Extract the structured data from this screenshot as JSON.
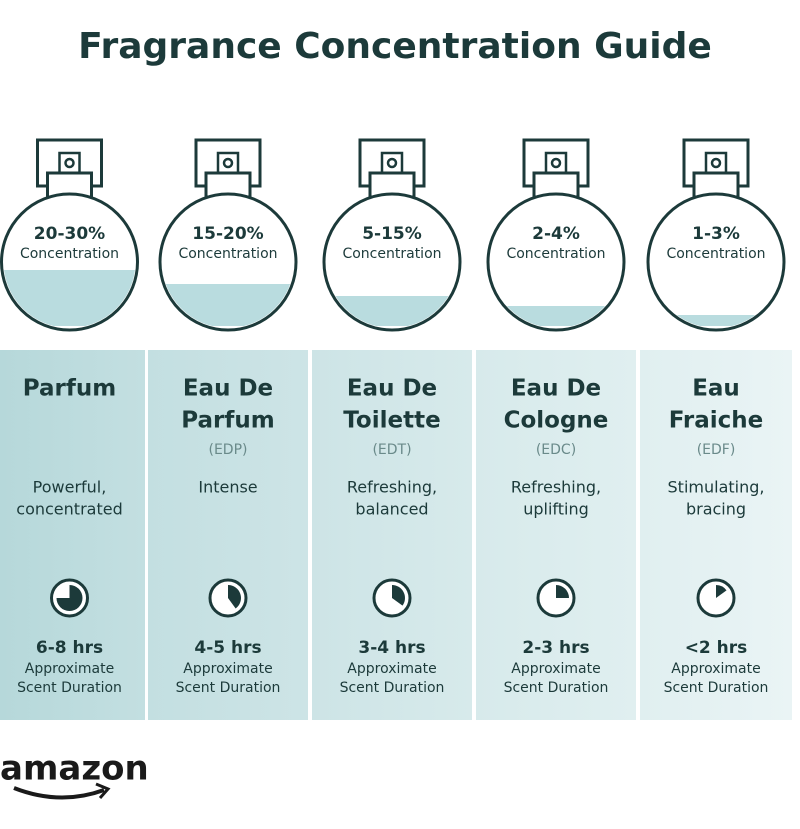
{
  "title": "Fragrance Concentration Guide",
  "columns": [
    {
      "concentration": "20-30%",
      "concentration_label": "Concentration",
      "name": [
        "Parfum"
      ],
      "description": [
        "Powerful,",
        "concentrated"
      ],
      "duration": "6-8 hrs",
      "duration_label": [
        "Approximate",
        "Scent Duration"
      ]
    },
    {
      "concentration": "15-20%",
      "concentration_label": "Concentration",
      "name": [
        "Eau De",
        "Parfum"
      ],
      "abbreviation": "(EDP)",
      "description": [
        "Intense"
      ],
      "duration": "4-5 hrs",
      "duration_label": [
        "Approximate",
        "Scent Duration"
      ]
    },
    {
      "concentration": "5-15%",
      "concentration_label": "Concentration",
      "name": [
        "Eau De",
        "Toilette"
      ],
      "abbreviation": "(EDT)",
      "description": [
        "Refreshing,",
        "balanced"
      ],
      "duration": "3-4 hrs",
      "duration_label": [
        "Approximate",
        "Scent Duration"
      ]
    },
    {
      "concentration": "2-4%",
      "concentration_label": "Concentration",
      "name": [
        "Eau De",
        "Cologne"
      ],
      "abbreviation": "(EDC)",
      "description": [
        "Refreshing,",
        "uplifting"
      ],
      "duration": "2-3 hrs",
      "duration_label": [
        "Approximate",
        "Scent Duration"
      ]
    },
    {
      "concentration": "1-3%",
      "concentration_label": "Concentration",
      "name": [
        "Eau",
        "Fraiche"
      ],
      "abbreviation": "(EDF)",
      "description": [
        "Stimulating,",
        "bracing"
      ],
      "duration": "<2 hrs",
      "duration_label": [
        "Approximate",
        "Scent Duration"
      ]
    }
  ],
  "logo": "amazon"
}
